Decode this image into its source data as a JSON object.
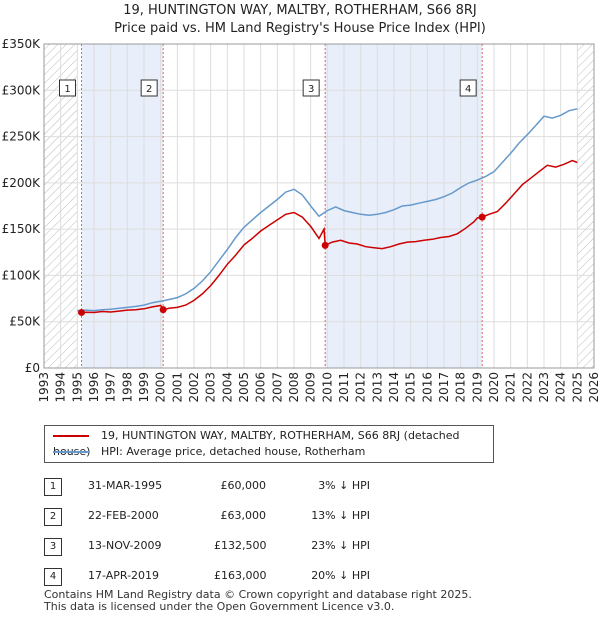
{
  "title_line1": "19, HUNTINGTON WAY, MALTBY, ROTHERHAM, S66 8RJ",
  "title_line2": "Price paid vs. HM Land Registry's House Price Index (HPI)",
  "chart_data": {
    "type": "line",
    "title": "19, HUNTINGTON WAY, MALTBY, ROTHERHAM, S66 8RJ — Price paid vs. HM Land Registry's House Price Index (HPI)",
    "xlabel": "",
    "ylabel": "",
    "xlim": [
      1993,
      2026
    ],
    "ylim": [
      0,
      350000
    ],
    "x_ticks": [
      1993,
      1994,
      1995,
      1996,
      1997,
      1998,
      1999,
      2000,
      2001,
      2002,
      2003,
      2004,
      2005,
      2006,
      2007,
      2008,
      2009,
      2010,
      2011,
      2012,
      2013,
      2014,
      2015,
      2016,
      2017,
      2018,
      2019,
      2020,
      2021,
      2022,
      2023,
      2024,
      2025,
      2026
    ],
    "y_ticks": [
      {
        "value": 0,
        "label": "£0"
      },
      {
        "value": 50000,
        "label": "£50K"
      },
      {
        "value": 100000,
        "label": "£100K"
      },
      {
        "value": 150000,
        "label": "£150K"
      },
      {
        "value": 200000,
        "label": "£200K"
      },
      {
        "value": 250000,
        "label": "£250K"
      },
      {
        "value": 300000,
        "label": "£300K"
      },
      {
        "value": 350000,
        "label": "£350K"
      }
    ],
    "shaded_periods": [
      [
        1995.25,
        2000.15
      ],
      [
        2009.87,
        2019.29
      ]
    ],
    "hatched_periods": [
      [
        1993,
        1995.0
      ],
      [
        2025.0,
        2026
      ]
    ],
    "series": [
      {
        "name": "19, HUNTINGTON WAY, MALTBY, ROTHERHAM, S66 8RJ (detached house)",
        "color": "#cc0000",
        "points": [
          [
            1995.25,
            60000
          ],
          [
            1995.6,
            60300
          ],
          [
            1996.0,
            60000
          ],
          [
            1996.5,
            61000
          ],
          [
            1997.0,
            60500
          ],
          [
            1997.5,
            61500
          ],
          [
            1998.0,
            62500
          ],
          [
            1998.5,
            63000
          ],
          [
            1999.0,
            64000
          ],
          [
            1999.5,
            66000
          ],
          [
            2000.0,
            67500
          ],
          [
            2000.15,
            63000
          ],
          [
            2000.5,
            64500
          ],
          [
            2001.0,
            65500
          ],
          [
            2001.5,
            68000
          ],
          [
            2002.0,
            73000
          ],
          [
            2002.5,
            80000
          ],
          [
            2003.0,
            89000
          ],
          [
            2003.5,
            100000
          ],
          [
            2004.0,
            112000
          ],
          [
            2004.5,
            122000
          ],
          [
            2005.0,
            133000
          ],
          [
            2005.5,
            140000
          ],
          [
            2006.0,
            148000
          ],
          [
            2006.5,
            154000
          ],
          [
            2007.0,
            160000
          ],
          [
            2007.5,
            166000
          ],
          [
            2008.0,
            168000
          ],
          [
            2008.5,
            163000
          ],
          [
            2009.0,
            153000
          ],
          [
            2009.5,
            140000
          ],
          [
            2009.8,
            150000
          ],
          [
            2009.87,
            132500
          ],
          [
            2010.3,
            136000
          ],
          [
            2010.8,
            138000
          ],
          [
            2011.3,
            135000
          ],
          [
            2011.8,
            134000
          ],
          [
            2012.3,
            131000
          ],
          [
            2012.8,
            130000
          ],
          [
            2013.3,
            129000
          ],
          [
            2013.8,
            131000
          ],
          [
            2014.3,
            134000
          ],
          [
            2014.8,
            136000
          ],
          [
            2015.3,
            136500
          ],
          [
            2015.8,
            138000
          ],
          [
            2016.3,
            139000
          ],
          [
            2016.8,
            141000
          ],
          [
            2017.3,
            142000
          ],
          [
            2017.8,
            145000
          ],
          [
            2018.3,
            151000
          ],
          [
            2018.8,
            158000
          ],
          [
            2019.0,
            162000
          ],
          [
            2019.29,
            163000
          ],
          [
            2019.7,
            166000
          ],
          [
            2020.2,
            169000
          ],
          [
            2020.7,
            178000
          ],
          [
            2021.2,
            188000
          ],
          [
            2021.7,
            198000
          ],
          [
            2022.2,
            205000
          ],
          [
            2022.7,
            212000
          ],
          [
            2023.2,
            219000
          ],
          [
            2023.7,
            217000
          ],
          [
            2024.2,
            220000
          ],
          [
            2024.7,
            224000
          ],
          [
            2025.0,
            222000
          ]
        ]
      },
      {
        "name": "HPI: Average price, detached house, Rotherham",
        "color": "#6699cc",
        "points": [
          [
            1995.0,
            62000
          ],
          [
            1995.5,
            62500
          ],
          [
            1996.0,
            62000
          ],
          [
            1996.5,
            63000
          ],
          [
            1997.0,
            63500
          ],
          [
            1997.5,
            64500
          ],
          [
            1998.0,
            65500
          ],
          [
            1998.5,
            66500
          ],
          [
            1999.0,
            68000
          ],
          [
            1999.5,
            70500
          ],
          [
            2000.0,
            72000
          ],
          [
            2000.5,
            74000
          ],
          [
            2001.0,
            76000
          ],
          [
            2001.5,
            80000
          ],
          [
            2002.0,
            86000
          ],
          [
            2002.5,
            94000
          ],
          [
            2003.0,
            104000
          ],
          [
            2003.5,
            116000
          ],
          [
            2004.0,
            128000
          ],
          [
            2004.5,
            141000
          ],
          [
            2005.0,
            152000
          ],
          [
            2005.5,
            160000
          ],
          [
            2006.0,
            168000
          ],
          [
            2006.5,
            175000
          ],
          [
            2007.0,
            182000
          ],
          [
            2007.5,
            190000
          ],
          [
            2008.0,
            193000
          ],
          [
            2008.5,
            187000
          ],
          [
            2009.0,
            175000
          ],
          [
            2009.5,
            164000
          ],
          [
            2010.0,
            170000
          ],
          [
            2010.5,
            174000
          ],
          [
            2011.0,
            170000
          ],
          [
            2011.5,
            168000
          ],
          [
            2012.0,
            166000
          ],
          [
            2012.5,
            165000
          ],
          [
            2013.0,
            166000
          ],
          [
            2013.5,
            168000
          ],
          [
            2014.0,
            171000
          ],
          [
            2014.5,
            175000
          ],
          [
            2015.0,
            176000
          ],
          [
            2015.5,
            178000
          ],
          [
            2016.0,
            180000
          ],
          [
            2016.5,
            182000
          ],
          [
            2017.0,
            185000
          ],
          [
            2017.5,
            189000
          ],
          [
            2018.0,
            195000
          ],
          [
            2018.5,
            200000
          ],
          [
            2019.0,
            203000
          ],
          [
            2019.5,
            207000
          ],
          [
            2020.0,
            212000
          ],
          [
            2020.5,
            222000
          ],
          [
            2021.0,
            232000
          ],
          [
            2021.5,
            243000
          ],
          [
            2022.0,
            252000
          ],
          [
            2022.5,
            262000
          ],
          [
            2023.0,
            272000
          ],
          [
            2023.5,
            270000
          ],
          [
            2024.0,
            273000
          ],
          [
            2024.5,
            278000
          ],
          [
            2025.0,
            280000
          ]
        ]
      }
    ],
    "sales": [
      {
        "label": "1",
        "date": "31-MAR-1995",
        "x": 1995.25,
        "price": 60000
      },
      {
        "label": "2",
        "date": "22-FEB-2000",
        "x": 2000.15,
        "price": 63000
      },
      {
        "label": "3",
        "date": "13-NOV-2009",
        "x": 2009.87,
        "price": 132500
      },
      {
        "label": "4",
        "date": "17-APR-2019",
        "x": 2019.29,
        "price": 163000
      }
    ]
  },
  "legend": {
    "property": "19, HUNTINGTON WAY, MALTBY, ROTHERHAM, S66 8RJ (detached house)",
    "hpi": "HPI: Average price, detached house, Rotherham"
  },
  "sales_table": [
    {
      "num": "1",
      "date": "31-MAR-1995",
      "price": "£60,000",
      "hpi": "3% ↓ HPI"
    },
    {
      "num": "2",
      "date": "22-FEB-2000",
      "price": "£63,000",
      "hpi": "13% ↓ HPI"
    },
    {
      "num": "3",
      "date": "13-NOV-2009",
      "price": "£132,500",
      "hpi": "23% ↓ HPI"
    },
    {
      "num": "4",
      "date": "17-APR-2019",
      "price": "£163,000",
      "hpi": "20% ↓ HPI"
    }
  ],
  "footer": {
    "line1": "Contains HM Land Registry data © Crown copyright and database right 2025.",
    "line2": "This data is licensed under the Open Government Licence v3.0."
  }
}
